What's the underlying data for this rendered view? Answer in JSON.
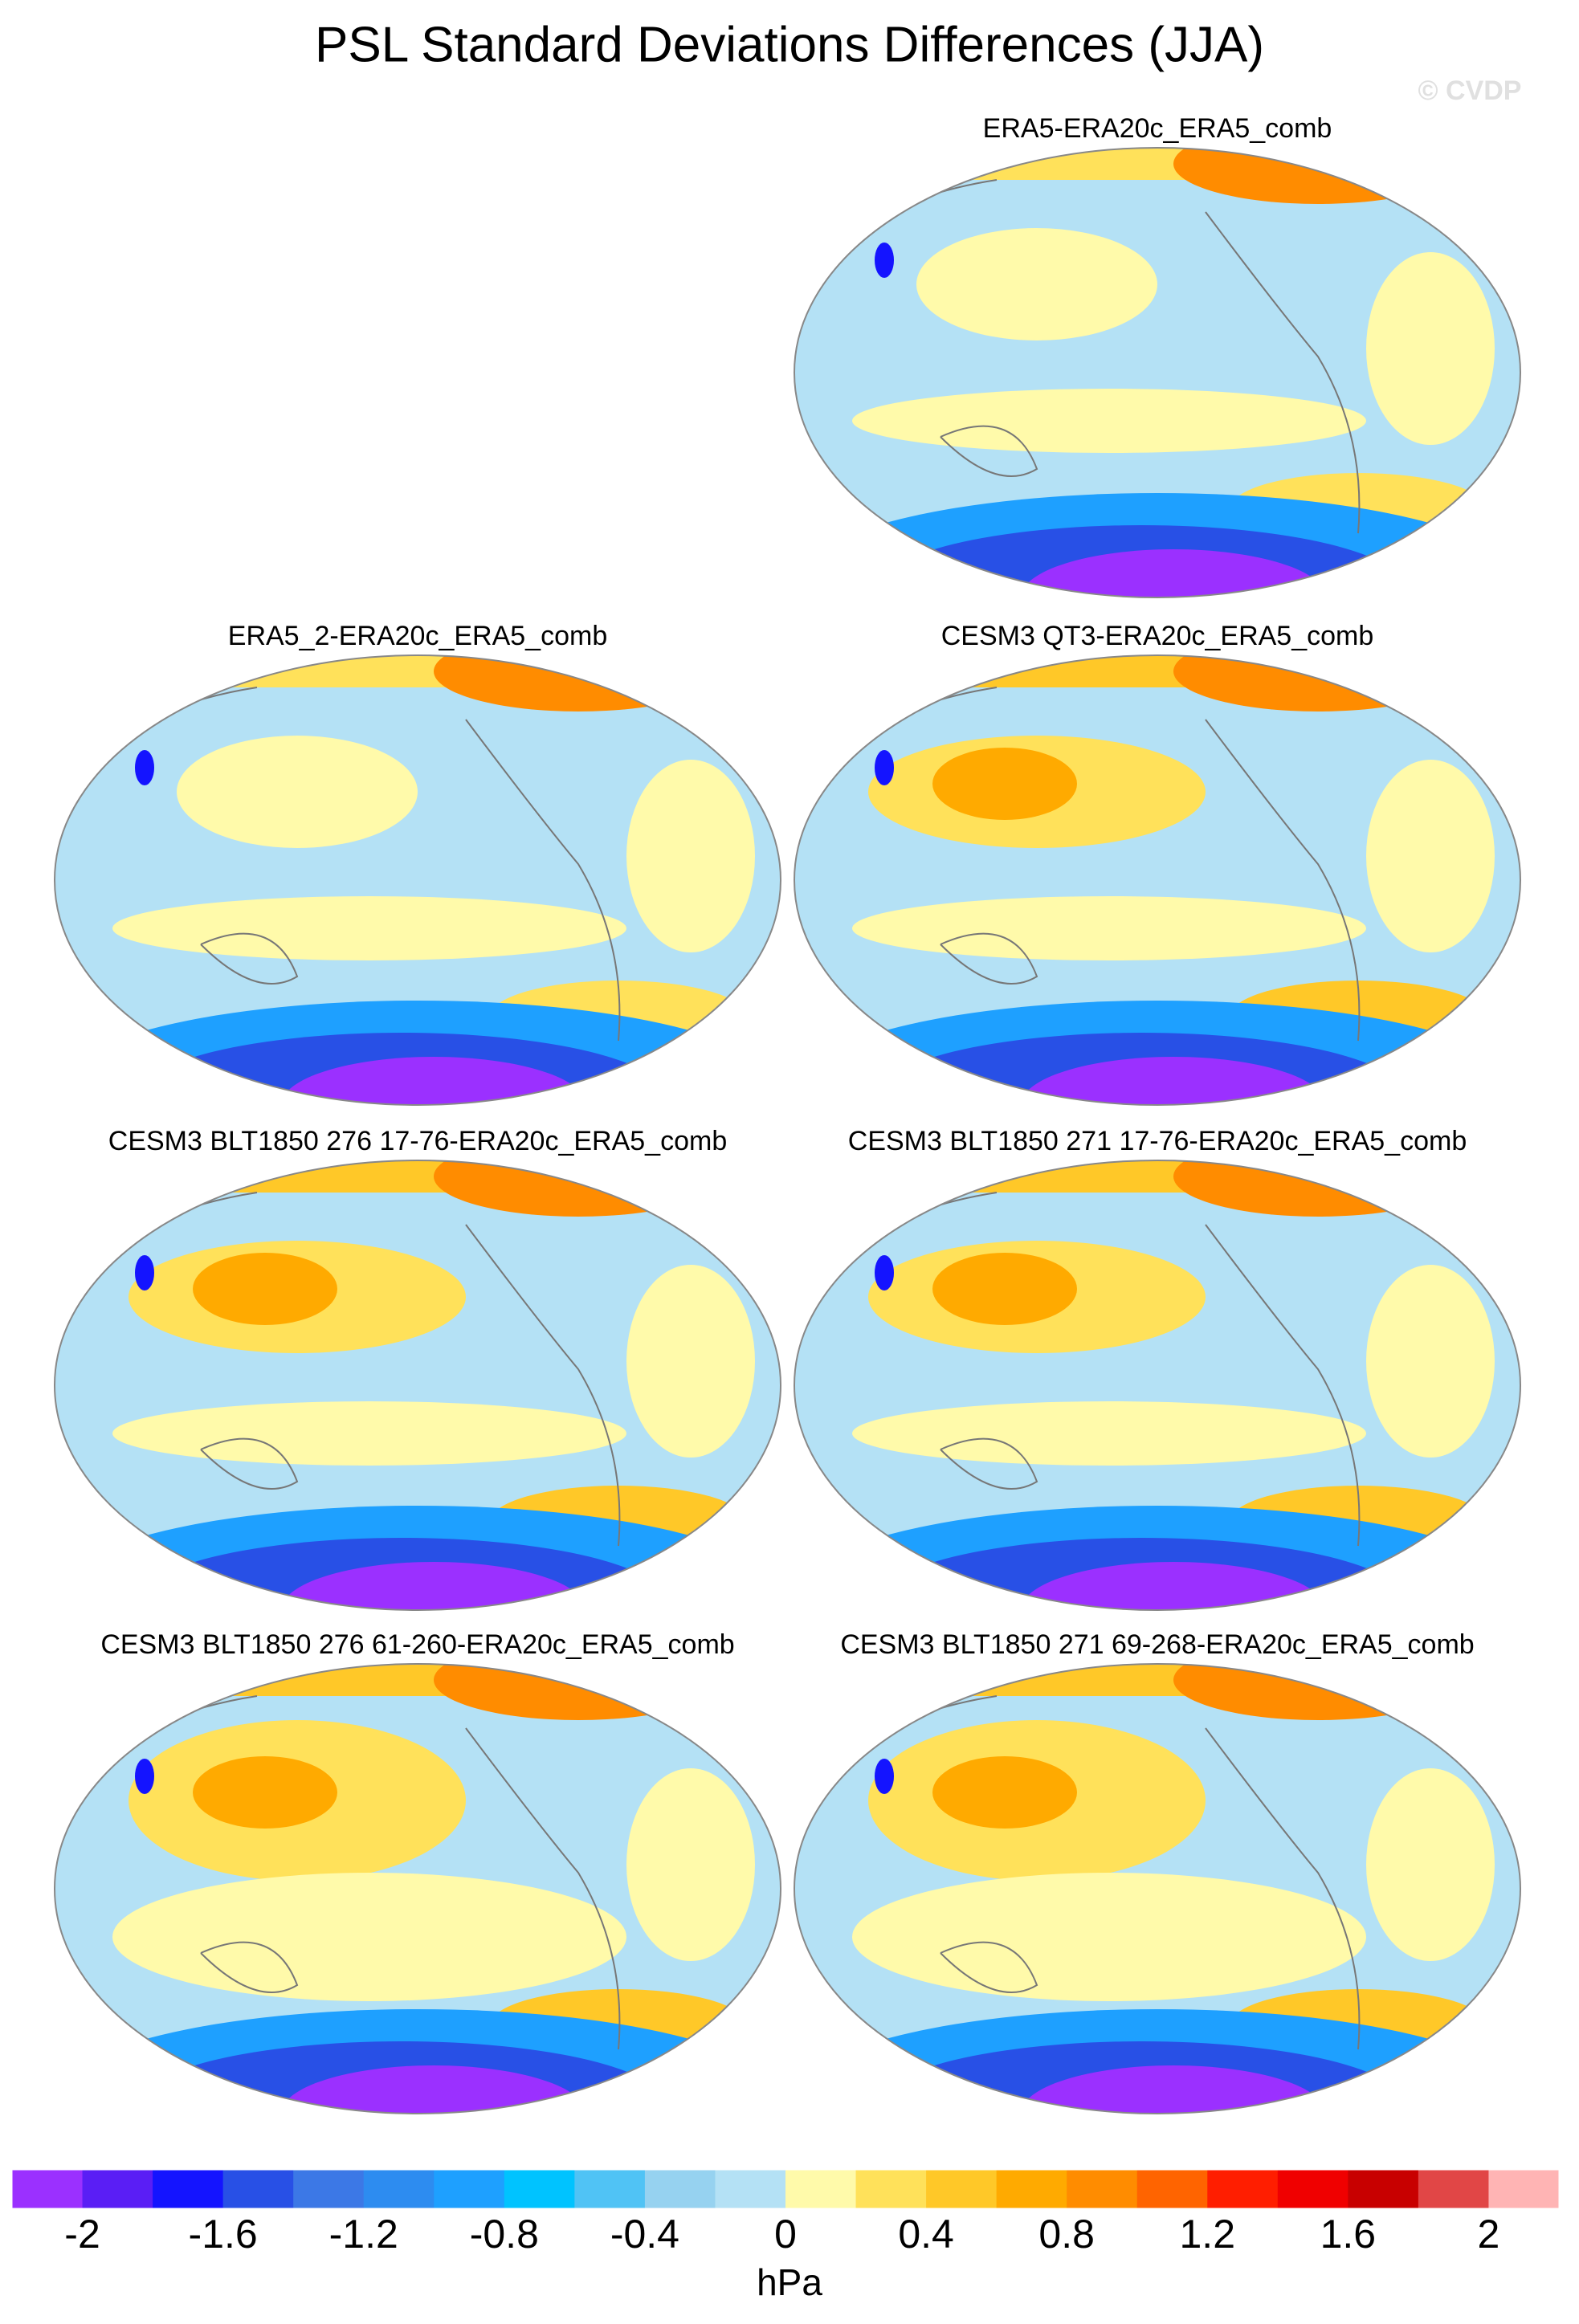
{
  "title": "PSL Standard Deviations Differences (JJA)",
  "watermark": "© CVDP",
  "panels": [
    {
      "title": "ERA5-ERA20c_ERA5_comb"
    },
    {
      "title": "ERA5_2-ERA20c_ERA5_comb"
    },
    {
      "title": "CESM3 QT3-ERA20c_ERA5_comb"
    },
    {
      "title": "CESM3 BLT1850 276 17-76-ERA20c_ERA5_comb"
    },
    {
      "title": "CESM3 BLT1850 271 17-76-ERA20c_ERA5_comb"
    },
    {
      "title": "CESM3 BLT1850 276 61-260-ERA20c_ERA5_comb"
    },
    {
      "title": "CESM3 BLT1850 271 69-268-ERA20c_ERA5_comb"
    }
  ],
  "colorbar": {
    "label": "hPa",
    "lim": [
      -2.2,
      2.2
    ],
    "ticks": [
      -2,
      -1.6,
      -1.2,
      -0.8,
      -0.4,
      0,
      0.4,
      0.8,
      1.2,
      1.6,
      2
    ],
    "colors": [
      "#9b30ff",
      "#5a1ef5",
      "#1414ff",
      "#2850e6",
      "#3c78e6",
      "#2d8cf0",
      "#1ea0ff",
      "#00c3ff",
      "#50c3f5",
      "#96d2f0",
      "#b4e1f5",
      "#fffaaa",
      "#ffe15a",
      "#ffc828",
      "#ffaa00",
      "#ff8c00",
      "#ff6400",
      "#ff1e00",
      "#f00000",
      "#c80000",
      "#e14646",
      "#ffb4b4"
    ]
  }
}
